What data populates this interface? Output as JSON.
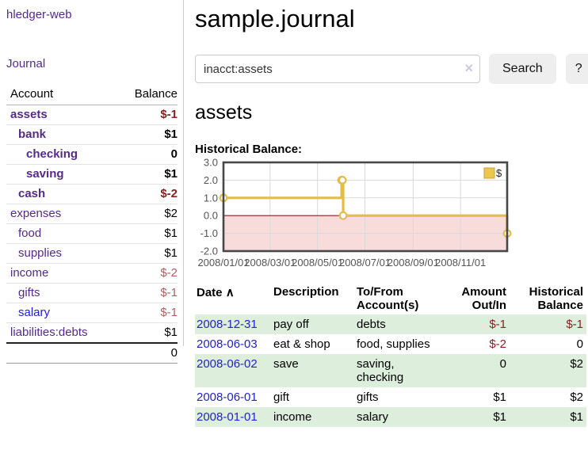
{
  "brand": "hledger-web",
  "nav": {
    "journal_label": "Journal"
  },
  "sidebar": {
    "header": {
      "account": "Account",
      "balance": "Balance"
    },
    "accounts": [
      {
        "name": "assets",
        "balance": "$-1"
      },
      {
        "name": "bank",
        "balance": "$1"
      },
      {
        "name": "checking",
        "balance": "0"
      },
      {
        "name": "saving",
        "balance": "$1"
      },
      {
        "name": "cash",
        "balance": "$-2"
      },
      {
        "name": "expenses",
        "balance": "$2"
      },
      {
        "name": "food",
        "balance": "$1"
      },
      {
        "name": "supplies",
        "balance": "$1"
      },
      {
        "name": "income",
        "balance": "$-2"
      },
      {
        "name": "gifts",
        "balance": "$-1"
      },
      {
        "name": "salary",
        "balance": "$-1"
      },
      {
        "name": "liabilities:debts",
        "balance": "$1"
      }
    ],
    "total": "0"
  },
  "header": {
    "title": "sample.journal"
  },
  "search": {
    "value": "inacct:assets",
    "clear_icon": "×",
    "search_label": "Search",
    "help_label": "?"
  },
  "account_page": {
    "title": "assets",
    "chart_label": "Historical Balance:"
  },
  "chart_data": {
    "type": "line",
    "title": "Historical Balance:",
    "legend": "$",
    "legend_position": "top-right",
    "grid": true,
    "ylim": [
      -2,
      3
    ],
    "y_ticks": [
      3.0,
      2.0,
      1.0,
      0.0,
      -1.0,
      -2.0
    ],
    "x_start": "2008/01/01",
    "x_end": "2008/12/31",
    "x_ticks": [
      "2008/01/01",
      "2008/03/01",
      "2008/05/01",
      "2008/07/01",
      "2008/09/01",
      "2008/11/01"
    ],
    "series": [
      {
        "name": "$",
        "step": true,
        "points": [
          [
            "2008/01/01",
            1
          ],
          [
            "2008/06/01",
            2
          ],
          [
            "2008/06/02",
            2
          ],
          [
            "2008/06/03",
            0
          ],
          [
            "2008/12/31",
            -1
          ]
        ]
      }
    ],
    "colors": {
      "line": "#e3bc4a",
      "marker_fill": "#ffffff",
      "negative_fill": "#f8dbdb",
      "zero_line": "#8b1f1f",
      "grid_line": "#d9d9d9",
      "border": "#474747",
      "tick_text": "#555555",
      "legend_fill": "#ecc74e",
      "legend_border": "#c9a33a"
    }
  },
  "register": {
    "sort_icon": "∧",
    "headers": {
      "date": "Date",
      "description": "Description",
      "accounts": "To/From Account(s)",
      "amount": "Amount Out/In",
      "historical": "Historical Balance"
    },
    "rows": [
      {
        "date": "2008-12-31",
        "description": "pay off",
        "accounts": "debts",
        "amount": "$-1",
        "historical": "$-1"
      },
      {
        "date": "2008-06-03",
        "description": "eat & shop",
        "accounts": "food, supplies",
        "amount": "$-2",
        "historical": "0"
      },
      {
        "date": "2008-06-02",
        "description": "save",
        "accounts": "saving,\nchecking",
        "amount": "0",
        "historical": "$2"
      },
      {
        "date": "2008-06-01",
        "description": "gift",
        "accounts": "gifts",
        "amount": "$1",
        "historical": "$2"
      },
      {
        "date": "2008-01-01",
        "description": "income",
        "accounts": "salary",
        "amount": "$1",
        "historical": "$1"
      }
    ]
  }
}
